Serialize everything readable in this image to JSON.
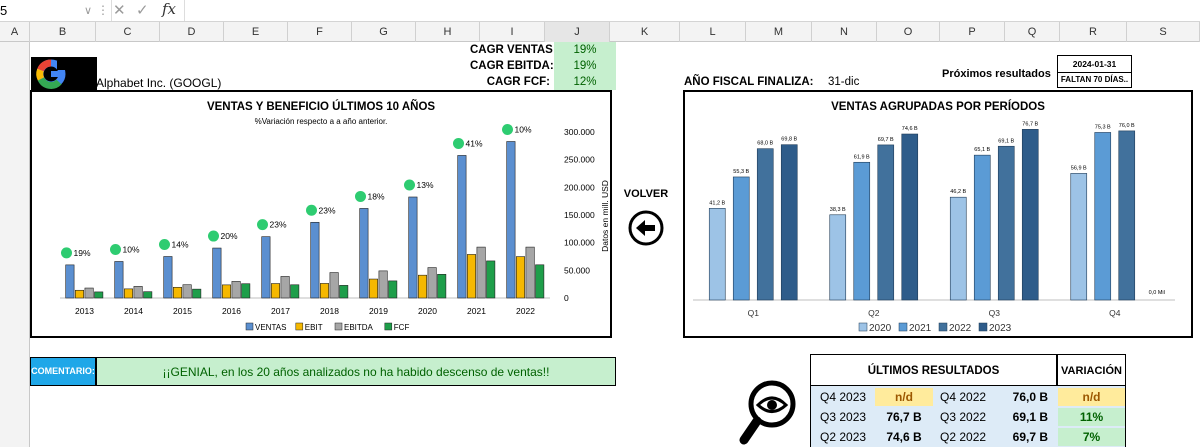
{
  "formula_bar": {
    "namebox": "5",
    "fx": "fx"
  },
  "columns": [
    "A",
    "B",
    "C",
    "D",
    "E",
    "F",
    "G",
    "H",
    "I",
    "J",
    "K",
    "L",
    "M",
    "N",
    "O",
    "P",
    "Q",
    "R",
    "S"
  ],
  "company": {
    "name": "Alphabet Inc. (GOOGL)",
    "logo_letter": "G"
  },
  "cagr": [
    {
      "label": "CAGR VENTAS:",
      "value": "19%"
    },
    {
      "label": "CAGR EBITDA:",
      "value": "19%"
    },
    {
      "label": "CAGR FCF:",
      "value": "12%"
    }
  ],
  "fiscal": {
    "label": "AÑO FISCAL FINALIZA:",
    "value": "31-dic"
  },
  "next_results": {
    "label": "Próximos resultados",
    "date": "2024-01-31",
    "remaining": "FALTAN 70 DÍAS.."
  },
  "volver": {
    "label": "VOLVER"
  },
  "comment": {
    "label": "COMENTARIO:",
    "text": "¡¡GENIAL, en los 20 años analizados no ha habido descenso de ventas!!"
  },
  "results_table": {
    "header": "ÚLTIMOS RESULTADOS",
    "variation_header": "VARIACIÓN",
    "rows": [
      {
        "q_now": "Q4 2023",
        "v_now": "n/d",
        "q_prev": "Q4 2022",
        "v_prev": "76,0 B",
        "var": "n/d"
      },
      {
        "q_now": "Q3 2023",
        "v_now": "76,7 B",
        "q_prev": "Q3 2022",
        "v_prev": "69,1 B",
        "var": "11%"
      },
      {
        "q_now": "Q2 2023",
        "v_now": "74,6 B",
        "q_prev": "Q2 2022",
        "v_prev": "69,7 B",
        "var": "7%"
      }
    ]
  },
  "chart_data": [
    {
      "type": "bar",
      "title": "VENTAS Y BENEFICIO ÚLTIMOS 10 AÑOS",
      "subtitle": "%Variación respecto a a año anterior.",
      "ylabel": "Datos en mill.  USD",
      "ylim": [
        0,
        300000
      ],
      "yticks": [
        "0",
        "50.000",
        "100.000",
        "150.000",
        "200.000",
        "250.000",
        "300.000"
      ],
      "categories": [
        "2013",
        "2014",
        "2015",
        "2016",
        "2017",
        "2018",
        "2019",
        "2020",
        "2021",
        "2022"
      ],
      "series": [
        {
          "name": "VENTAS",
          "color": "#5b8fd0",
          "values": [
            59825,
            66001,
            74989,
            90272,
            110855,
            136819,
            161857,
            182527,
            257637,
            282836
          ]
        },
        {
          "name": "EBIT",
          "color": "#f5b800",
          "values": [
            13966,
            16496,
            19360,
            23716,
            26146,
            26321,
            34231,
            41224,
            78714,
            74842
          ]
        },
        {
          "name": "EBITDA",
          "color": "#a6a6a6",
          "values": [
            18000,
            21000,
            24000,
            30000,
            39000,
            46000,
            49000,
            55000,
            92000,
            92000
          ]
        },
        {
          "name": "FCF",
          "color": "#1e9e4a",
          "values": [
            11000,
            11400,
            16000,
            25800,
            23900,
            22800,
            30900,
            42800,
            67000,
            60000
          ]
        }
      ],
      "variation_labels": [
        "19%",
        "10%",
        "14%",
        "20%",
        "23%",
        "23%",
        "18%",
        "13%",
        "41%",
        "10%"
      ],
      "legend": "bottom"
    },
    {
      "type": "bar",
      "title": "VENTAS AGRUPADAS POR PERÍODOS",
      "categories": [
        "Q1",
        "Q2",
        "Q3",
        "Q4"
      ],
      "series": [
        {
          "name": "2020",
          "color": "#9dc3e6",
          "values": [
            41.2,
            38.3,
            46.2,
            56.9
          ]
        },
        {
          "name": "2021",
          "color": "#5b9bd5",
          "values": [
            55.3,
            61.9,
            65.1,
            75.3
          ]
        },
        {
          "name": "2022",
          "color": "#41719c",
          "values": [
            68.0,
            69.7,
            69.1,
            76.0
          ]
        },
        {
          "name": "2023",
          "color": "#2e5c8a",
          "values": [
            69.8,
            74.6,
            76.7,
            0
          ]
        }
      ],
      "value_labels": [
        [
          "41,2 B",
          "38,3 B",
          "46,2 B",
          "56,9 B"
        ],
        [
          "55,3 B",
          "61,9 B",
          "65,1 B",
          "75,3 B"
        ],
        [
          "68,0 B",
          "69,7 B",
          "69,1 B",
          "76,0 B"
        ],
        [
          "69,8 B",
          "74,6 B",
          "76,7 B",
          "0,0 Mil"
        ]
      ],
      "ylim": [
        0,
        80
      ],
      "legend": "bottom"
    }
  ]
}
